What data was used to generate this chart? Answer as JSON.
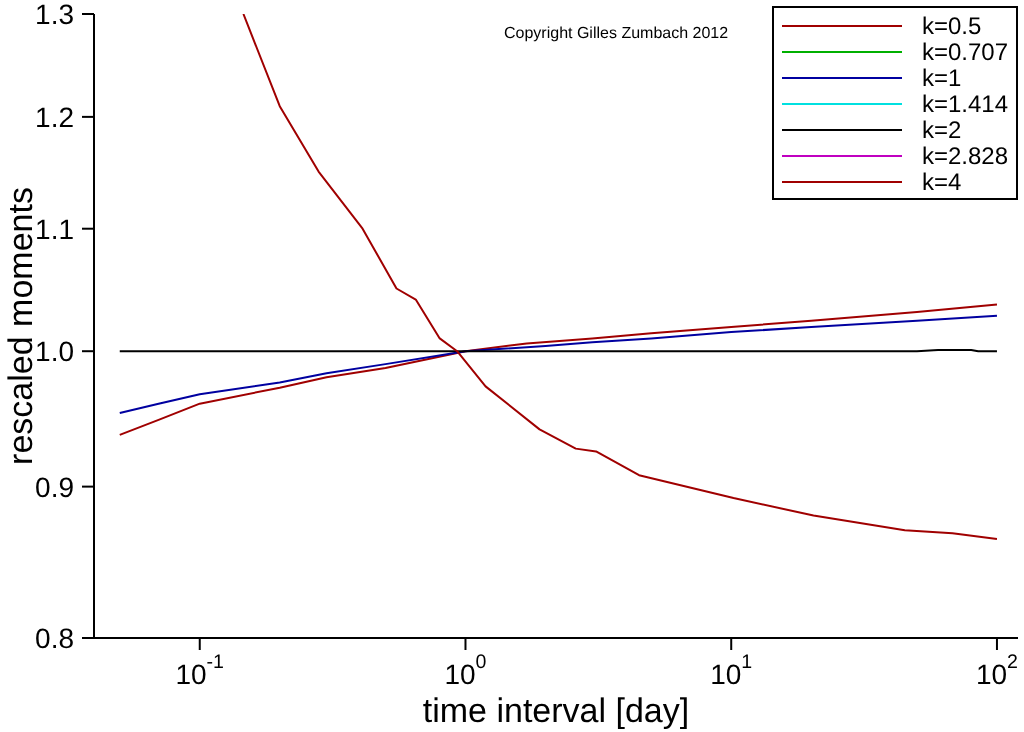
{
  "chart_data": {
    "type": "line",
    "xlabel": "time interval [day]",
    "ylabel": "rescaled moments",
    "log": "xy",
    "xlim": [
      0.04,
      120
    ],
    "xticks": [
      {
        "value": 0.1,
        "label": "10$^{-1}$"
      },
      {
        "value": 1,
        "label": "10$^{0}$"
      },
      {
        "value": 10,
        "label": "10$^{1}$"
      },
      {
        "value": 100,
        "label": "10$^{2}$"
      }
    ],
    "ylim": [
      0.8,
      1.3
    ],
    "yticks": [
      0.8,
      0.9,
      {
        "value": 1,
        "label": "1.0"
      },
      1.1,
      1.2,
      1.3
    ],
    "grid": false,
    "legend": "top right",
    "marker": "none",
    "line_style": "solid",
    "annotations": [
      "Copyright Gilles Zumbach 2012"
    ],
    "series": [
      {
        "name": "k=0.5",
        "color": "#a00000",
        "x": [
          0.05,
          0.07,
          0.1,
          0.2,
          0.3,
          0.5,
          1,
          1.7,
          3,
          5,
          10,
          20,
          50,
          100
        ],
        "values": [
          0.937,
          0.948,
          0.96,
          0.972,
          0.98,
          0.987,
          1.0,
          1.006,
          1.01,
          1.014,
          1.019,
          1.024,
          1.031,
          1.037
        ]
      },
      {
        "name": "k=0.707",
        "color": "#00b000"
      },
      {
        "name": "k=1",
        "color": "#0000a0",
        "x": [
          0.05,
          0.07,
          0.1,
          0.2,
          0.3,
          0.5,
          1,
          2,
          3,
          5,
          10,
          20,
          50,
          100
        ],
        "values": [
          0.953,
          0.96,
          0.967,
          0.976,
          0.983,
          0.99,
          1.0,
          1.004,
          1.007,
          1.01,
          1.015,
          1.019,
          1.024,
          1.028
        ]
      },
      {
        "name": "k=1.414",
        "color": "#00e0e0"
      },
      {
        "name": "k=2",
        "color": "#000000",
        "x": [
          0.05,
          1,
          10,
          50,
          60,
          80,
          85,
          100
        ],
        "values": [
          1.0,
          1.0,
          1.0,
          1.0,
          1.001,
          1.001,
          1.0,
          1.0
        ]
      },
      {
        "name": "k=2.828",
        "color": "#c000c0"
      },
      {
        "name": "k=4",
        "color": "#a00000",
        "x": [
          0.146,
          0.2,
          0.28,
          0.41,
          0.55,
          0.65,
          0.8,
          0.93,
          1.19,
          1.9,
          2.6,
          3.1,
          4.5,
          10.2,
          20.4,
          45,
          68,
          100
        ],
        "values": [
          1.3,
          1.21,
          1.15,
          1.1,
          1.05,
          1.041,
          1.01,
          1.0,
          0.973,
          0.941,
          0.927,
          0.925,
          0.908,
          0.892,
          0.88,
          0.87,
          0.868,
          0.864
        ]
      }
    ]
  }
}
